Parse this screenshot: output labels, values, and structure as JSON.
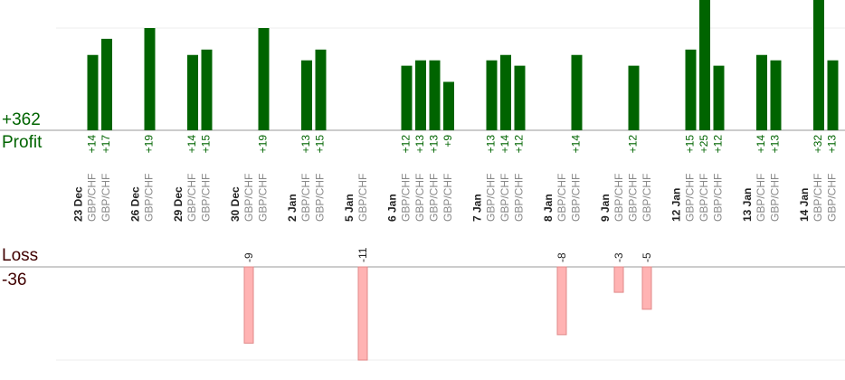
{
  "summary": {
    "profit_total": "+362",
    "profit_label": "Profit",
    "loss_label": "Loss",
    "loss_total": "-36"
  },
  "colors": {
    "profit_bar": "#006400",
    "loss_bar_fill": "#ffb3b3",
    "loss_bar_stroke": "#e08a8a",
    "grid": "#eeeeee",
    "baseline": "#999999"
  },
  "chart_data": {
    "type": "bar",
    "profit_axis_max": 19,
    "loss_axis_max": 11,
    "groups": [
      {
        "date": "23 Dec",
        "trades": [
          {
            "pair": "GBP/CHF",
            "result": 14
          },
          {
            "pair": "GBP/CHF",
            "result": 17
          }
        ]
      },
      {
        "date": "26 Dec",
        "trades": [
          {
            "pair": "GBP/CHF",
            "result": 19
          }
        ]
      },
      {
        "date": "29 Dec",
        "trades": [
          {
            "pair": "GBP/CHF",
            "result": 14
          },
          {
            "pair": "GBP/CHF",
            "result": 15
          }
        ]
      },
      {
        "date": "30 Dec",
        "trades": [
          {
            "pair": "GBP/CHF",
            "result": -9
          },
          {
            "pair": "GBP/CHF",
            "result": 19
          }
        ]
      },
      {
        "date": "2 Jan",
        "trades": [
          {
            "pair": "GBP/CHF",
            "result": 13
          },
          {
            "pair": "GBP/CHF",
            "result": 15
          }
        ]
      },
      {
        "date": "5 Jan",
        "trades": [
          {
            "pair": "GBP/CHF",
            "result": -11
          }
        ]
      },
      {
        "date": "6 Jan",
        "trades": [
          {
            "pair": "GBP/CHF",
            "result": 12
          },
          {
            "pair": "GBP/CHF",
            "result": 13
          },
          {
            "pair": "GBP/CHF",
            "result": 13
          },
          {
            "pair": "GBP/CHF",
            "result": 9
          }
        ]
      },
      {
        "date": "7 Jan",
        "trades": [
          {
            "pair": "GBP/CHF",
            "result": 13
          },
          {
            "pair": "GBP/CHF",
            "result": 14
          },
          {
            "pair": "GBP/CHF",
            "result": 12
          }
        ]
      },
      {
        "date": "8 Jan",
        "trades": [
          {
            "pair": "GBP/CHF",
            "result": -8
          },
          {
            "pair": "GBP/CHF",
            "result": 14
          }
        ]
      },
      {
        "date": "9 Jan",
        "trades": [
          {
            "pair": "GBP/CHF",
            "result": -3
          },
          {
            "pair": "GBP/CHF",
            "result": 12
          },
          {
            "pair": "GBP/CHF",
            "result": -5
          }
        ]
      },
      {
        "date": "12 Jan",
        "trades": [
          {
            "pair": "GBP/CHF",
            "result": 15
          },
          {
            "pair": "GBP/CHF",
            "result": 25
          },
          {
            "pair": "GBP/CHF",
            "result": 12
          }
        ]
      },
      {
        "date": "13 Jan",
        "trades": [
          {
            "pair": "GBP/CHF",
            "result": 14
          },
          {
            "pair": "GBP/CHF",
            "result": 13
          }
        ]
      },
      {
        "date": "14 Jan",
        "trades": [
          {
            "pair": "GBP/CHF",
            "result": 32
          },
          {
            "pair": "GBP/CHF",
            "result": 13
          }
        ]
      }
    ]
  }
}
